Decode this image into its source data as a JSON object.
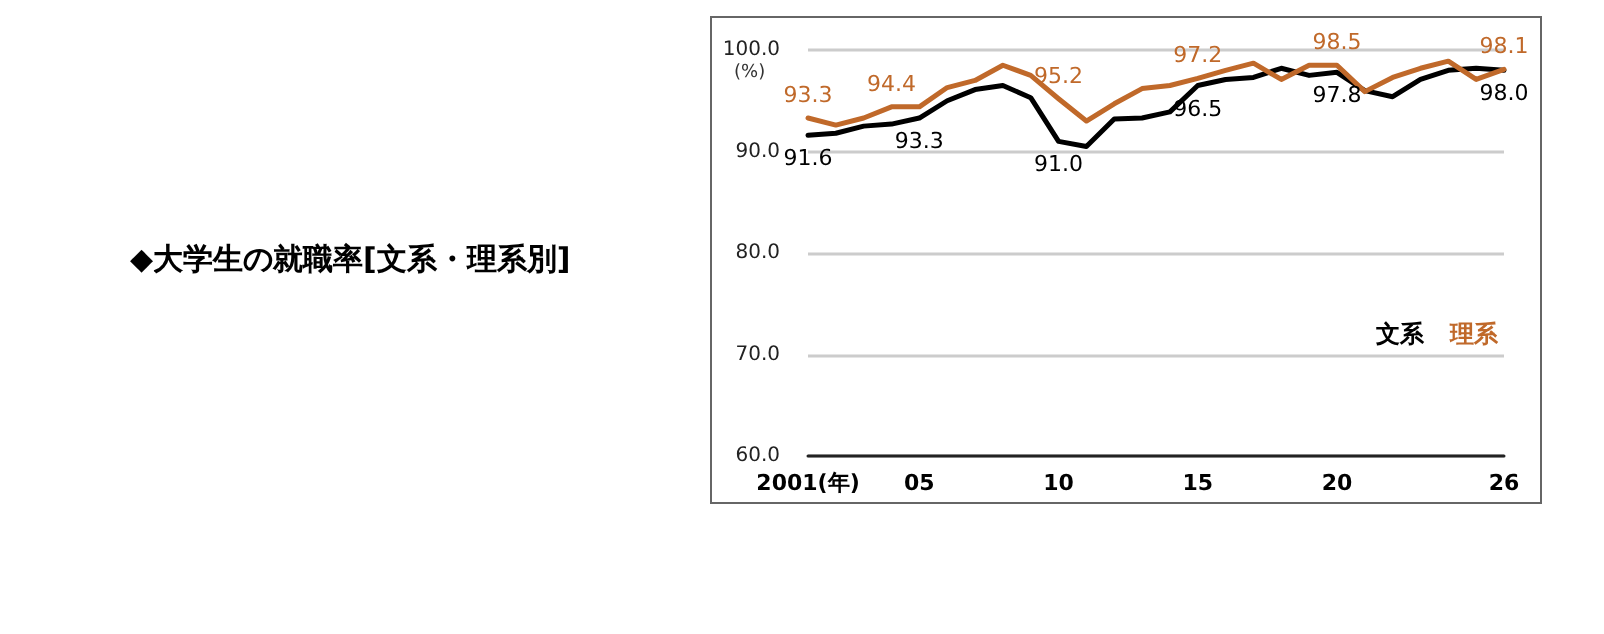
{
  "chart_data": {
    "type": "line",
    "title": "◆大学生の就職率[文系・理系別]",
    "ylabel": "(%)",
    "x": [
      2001,
      2002,
      2003,
      2004,
      2005,
      2006,
      2007,
      2008,
      2009,
      2010,
      2011,
      2012,
      2013,
      2014,
      2015,
      2016,
      2017,
      2018,
      2019,
      2020,
      2021,
      2022,
      2023,
      2024,
      2025,
      2026
    ],
    "xlim": [
      2001,
      2026
    ],
    "xticks": [
      {
        "value": 2001,
        "label": "2001(年)"
      },
      {
        "value": 2005,
        "label": "05"
      },
      {
        "value": 2010,
        "label": "10"
      },
      {
        "value": 2015,
        "label": "15"
      },
      {
        "value": 2020,
        "label": "20"
      },
      {
        "value": 2026,
        "label": "26"
      }
    ],
    "ylim": [
      60,
      100
    ],
    "yticks": [
      {
        "value": 60,
        "label": "60.0"
      },
      {
        "value": 70,
        "label": "70.0"
      },
      {
        "value": 80,
        "label": "80.0"
      },
      {
        "value": 90,
        "label": "90.0"
      },
      {
        "value": 100,
        "label": "100.0"
      }
    ],
    "grid": "y",
    "legend": "right",
    "marker": "none",
    "line_style": "solid",
    "series": [
      {
        "name": "文系",
        "color": "#000000",
        "values": [
          91.6,
          91.8,
          92.5,
          92.7,
          93.3,
          95.0,
          96.1,
          96.5,
          95.3,
          91.0,
          90.5,
          93.2,
          93.3,
          93.9,
          96.5,
          97.1,
          97.3,
          98.2,
          97.5,
          97.8,
          96.0,
          95.4,
          97.1,
          98.0,
          98.2,
          98.0
        ],
        "value_labels": [
          "91.6",
          null,
          null,
          null,
          "93.3",
          null,
          null,
          null,
          null,
          "91.0",
          null,
          null,
          null,
          null,
          "96.5",
          null,
          null,
          null,
          null,
          "97.8",
          null,
          null,
          null,
          null,
          null,
          "98.0"
        ]
      },
      {
        "name": "理系",
        "color": "#c0692a",
        "values": [
          93.3,
          92.6,
          93.3,
          94.4,
          94.4,
          96.3,
          97.0,
          98.5,
          97.5,
          95.2,
          93.0,
          94.7,
          96.2,
          96.5,
          97.2,
          98.0,
          98.7,
          97.1,
          98.5,
          98.5,
          95.9,
          97.3,
          98.2,
          98.9,
          97.1,
          98.1
        ],
        "value_labels": [
          "93.3",
          null,
          null,
          "94.4",
          null,
          null,
          null,
          null,
          null,
          "95.2",
          null,
          null,
          null,
          null,
          "97.2",
          null,
          null,
          null,
          null,
          "98.5",
          null,
          null,
          null,
          null,
          null,
          "98.1"
        ]
      }
    ]
  }
}
